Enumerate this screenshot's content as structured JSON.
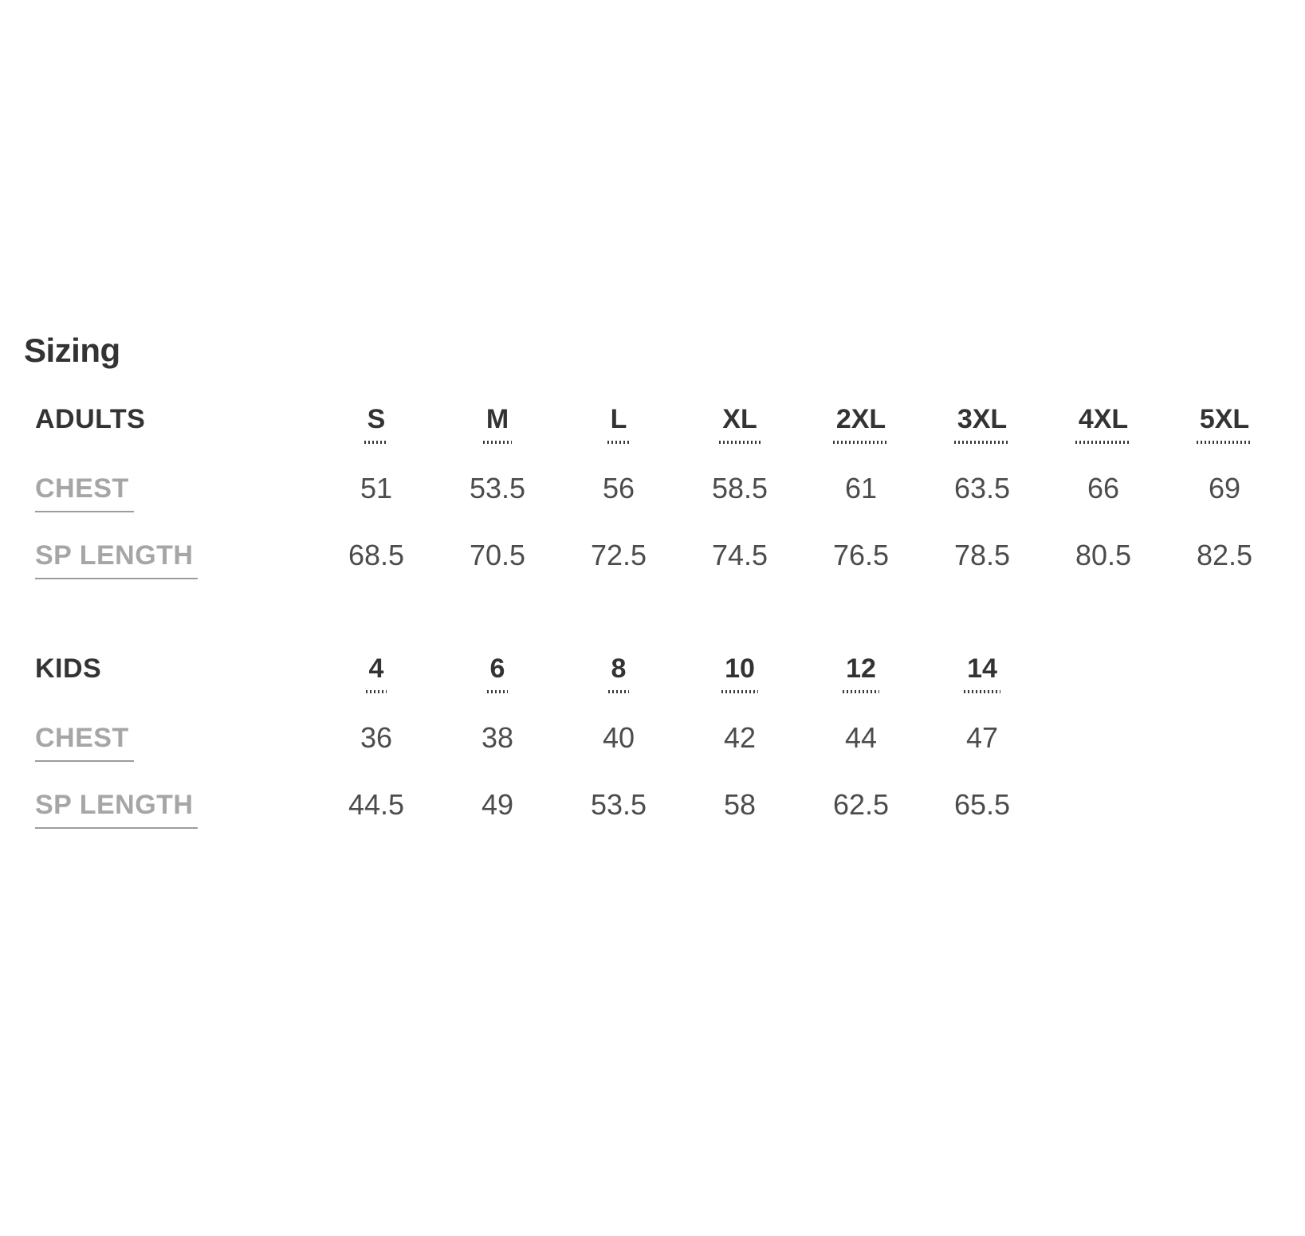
{
  "page": {
    "title": "Sizing"
  },
  "table": {
    "adults": {
      "label": "ADULTS",
      "sizes": [
        "S",
        "M",
        "L",
        "XL",
        "2XL",
        "3XL",
        "4XL",
        "5XL"
      ],
      "rows": [
        {
          "label": "CHEST",
          "values": [
            "51",
            "53.5",
            "56",
            "58.5",
            "61",
            "63.5",
            "66",
            "69"
          ]
        },
        {
          "label": "SP LENGTH",
          "values": [
            "68.5",
            "70.5",
            "72.5",
            "74.5",
            "76.5",
            "78.5",
            "80.5",
            "82.5"
          ]
        }
      ]
    },
    "kids": {
      "label": "KIDS",
      "sizes": [
        "4",
        "6",
        "8",
        "10",
        "12",
        "14"
      ],
      "rows": [
        {
          "label": "CHEST",
          "values": [
            "36",
            "38",
            "40",
            "42",
            "44",
            "47"
          ]
        },
        {
          "label": "SP LENGTH",
          "values": [
            "44.5",
            "49",
            "53.5",
            "58",
            "62.5",
            "65.5"
          ]
        }
      ]
    }
  },
  "colors": {
    "heading_text": "#333333",
    "muted_label": "#a6a6a6",
    "value_text": "#4c4c4c",
    "underline": "#9c9c9c",
    "background": "#ffffff"
  }
}
